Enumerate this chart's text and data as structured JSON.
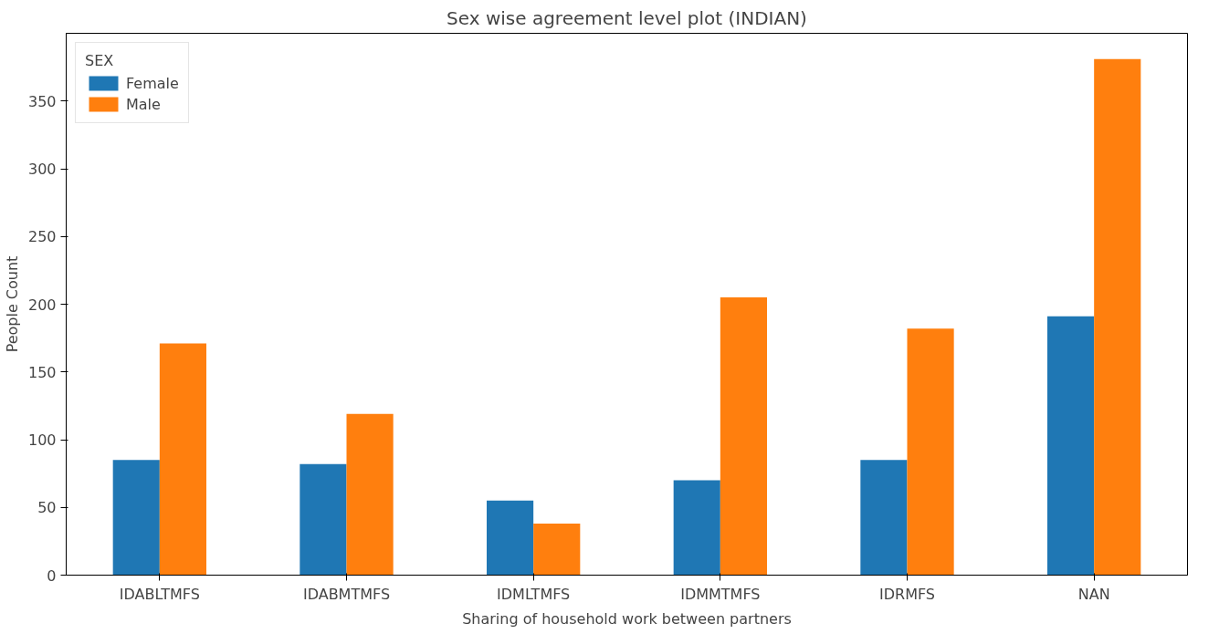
{
  "chart_data": {
    "type": "bar",
    "title": "Sex wise agreement level plot (INDIAN)",
    "xlabel": "Sharing of household work between partners",
    "ylabel": "People Count",
    "legend_title": "SEX",
    "categories": [
      "IDABLTMFS",
      "IDABMTMFS",
      "IDMLTMFS",
      "IDMMTMFS",
      "IDRMFS",
      "NAN"
    ],
    "series": [
      {
        "name": "Female",
        "color": "#1f77b4",
        "values": [
          85,
          82,
          55,
          70,
          85,
          191
        ]
      },
      {
        "name": "Male",
        "color": "#ff7f0e",
        "values": [
          171,
          119,
          38,
          205,
          182,
          381
        ]
      }
    ],
    "ylim": [
      0,
      400
    ],
    "yticks": [
      0,
      50,
      100,
      150,
      200,
      250,
      300,
      350
    ],
    "grid": false,
    "legend": "top left"
  }
}
